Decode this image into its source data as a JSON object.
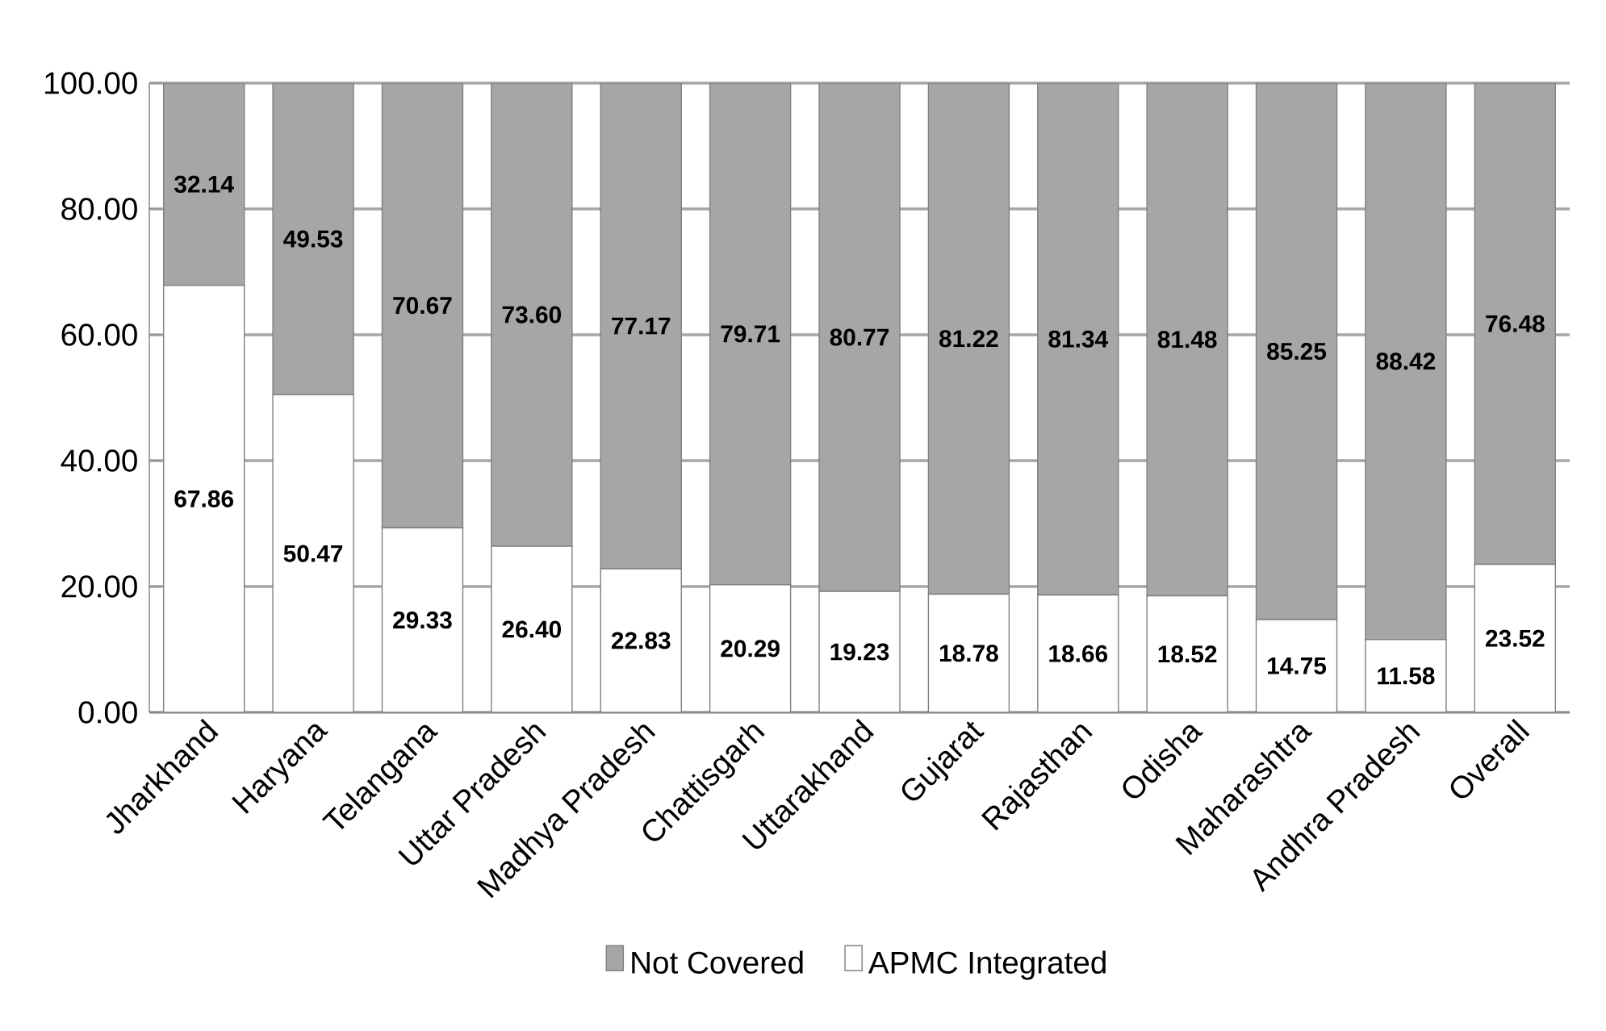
{
  "chart_data": {
    "type": "bar",
    "stacked": true,
    "categories": [
      "Jharkhand",
      "Haryana",
      "Telangana",
      "Uttar Pradesh",
      "Madhya Pradesh",
      "Chattisgarh",
      "Uttarakhand",
      "Gujarat",
      "Rajasthan",
      "Odisha",
      "Maharashtra",
      "Andhra Pradesh",
      "Overall"
    ],
    "series": [
      {
        "name": "APMC Integrated",
        "color": "#ffffff",
        "values": [
          67.86,
          50.47,
          29.33,
          26.4,
          22.83,
          20.29,
          19.23,
          18.78,
          18.66,
          18.52,
          14.75,
          11.58,
          23.52
        ],
        "value_labels": [
          "67.86",
          "50.47",
          "29.33",
          "26.40",
          "22.83",
          "20.29",
          "19.23",
          "18.78",
          "18.66",
          "18.52",
          "14.75",
          "11.58",
          "23.52"
        ]
      },
      {
        "name": "Not Covered",
        "color": "#a6a6a6",
        "values": [
          32.14,
          49.53,
          70.67,
          73.6,
          77.17,
          79.71,
          80.77,
          81.22,
          81.34,
          81.48,
          85.25,
          88.42,
          76.48
        ],
        "value_labels": [
          "32.14",
          "49.53",
          "70.67",
          "73.60",
          "77.17",
          "79.71",
          "80.77",
          "81.22",
          "81.34",
          "81.48",
          "85.25",
          "88.42",
          "76.48"
        ]
      }
    ],
    "ylim": [
      0,
      100
    ],
    "yticks": [
      {
        "value": 0,
        "label": "0.00"
      },
      {
        "value": 20,
        "label": "20.00"
      },
      {
        "value": 40,
        "label": "40.00"
      },
      {
        "value": 60,
        "label": "60.00"
      },
      {
        "value": 80,
        "label": "80.00"
      },
      {
        "value": 100,
        "label": "100.00"
      }
    ],
    "grid": "y",
    "legend": "bottom"
  }
}
